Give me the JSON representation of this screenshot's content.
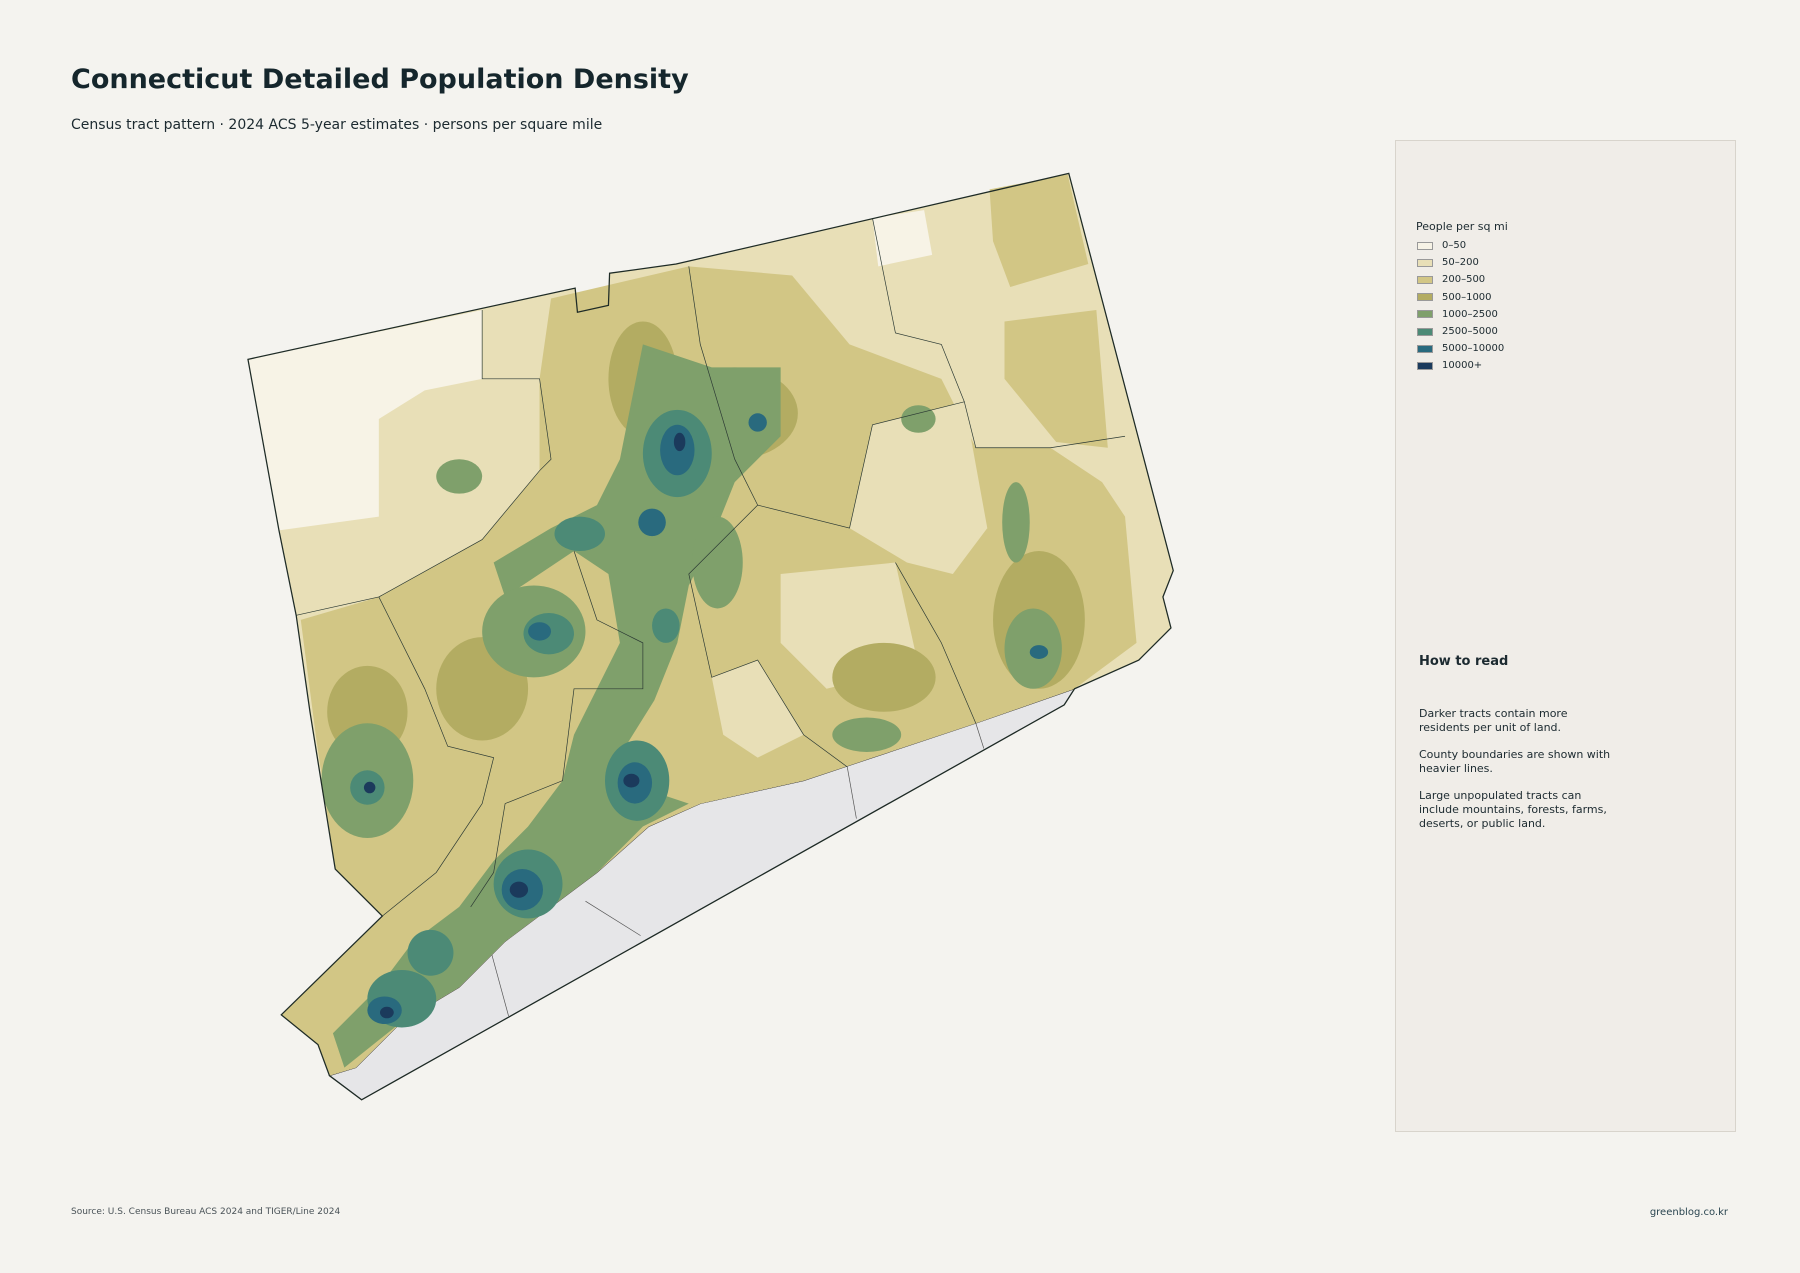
{
  "header": {
    "title": "Connecticut Detailed Population Density",
    "subtitle": "Census tract pattern · 2024 ACS 5-year estimates · persons per square mile"
  },
  "legend": {
    "title": "People per sq mi",
    "items": [
      {
        "label": "0–50",
        "color": "#f7f3e6"
      },
      {
        "label": "50–200",
        "color": "#e8dfb7"
      },
      {
        "label": "200–500",
        "color": "#d2c685"
      },
      {
        "label": "500–1000",
        "color": "#b3ac62"
      },
      {
        "label": "1000–2500",
        "color": "#7fa06b"
      },
      {
        "label": "2500–5000",
        "color": "#4c8a76"
      },
      {
        "label": "5000–10000",
        "color": "#296a7e"
      },
      {
        "label": "10000+",
        "color": "#1b3a5c"
      }
    ]
  },
  "how_to_read": {
    "title": "How to read",
    "paragraphs": [
      "Darker tracts contain more residents per unit of land.",
      "County boundaries are shown with heavier lines.",
      "Large unpopulated tracts can include mountains, forests, farms, deserts, or public land."
    ]
  },
  "footer": {
    "source": "Source: U.S. Census Bureau ACS 2024 and TIGER/Line 2024",
    "credit": "greenblog.co.kr"
  }
}
